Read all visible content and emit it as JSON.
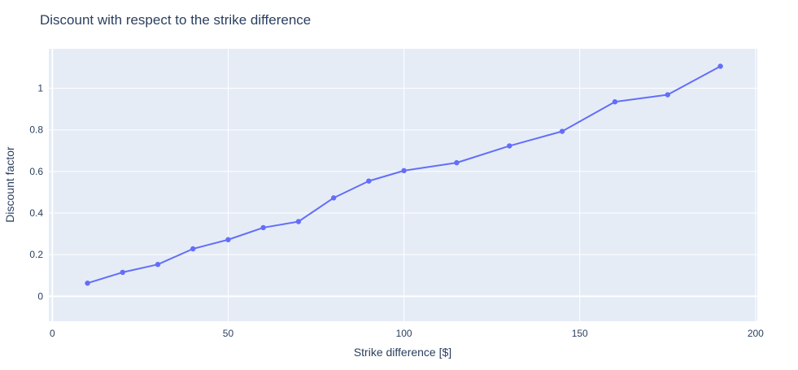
{
  "chart_data": {
    "type": "line",
    "title": "Discount with respect to the strike difference",
    "xlabel": "Strike difference [$]",
    "ylabel": "Discount factor",
    "xlim": [
      -1,
      200.5
    ],
    "ylim": [
      -0.12,
      1.19
    ],
    "xticks": [
      0,
      50,
      100,
      150,
      200
    ],
    "yticks": [
      0,
      0.2,
      0.4,
      0.6,
      0.8,
      1
    ],
    "grid": true,
    "legend": "none",
    "series": [
      {
        "name": "Discount factor",
        "color": "#636efa",
        "x": [
          10,
          20,
          30,
          40,
          50,
          60,
          70,
          80,
          90,
          100,
          115,
          130,
          145,
          160,
          175,
          190
        ],
        "y": [
          0.063,
          0.115,
          0.153,
          0.228,
          0.272,
          0.33,
          0.359,
          0.473,
          0.554,
          0.604,
          0.642,
          0.723,
          0.793,
          0.935,
          0.969,
          1.106
        ]
      }
    ]
  },
  "colors": {
    "plot_bg": "#e5ecf6",
    "grid": "#ffffff",
    "text": "#2a3f5f",
    "line": "#636efa"
  }
}
